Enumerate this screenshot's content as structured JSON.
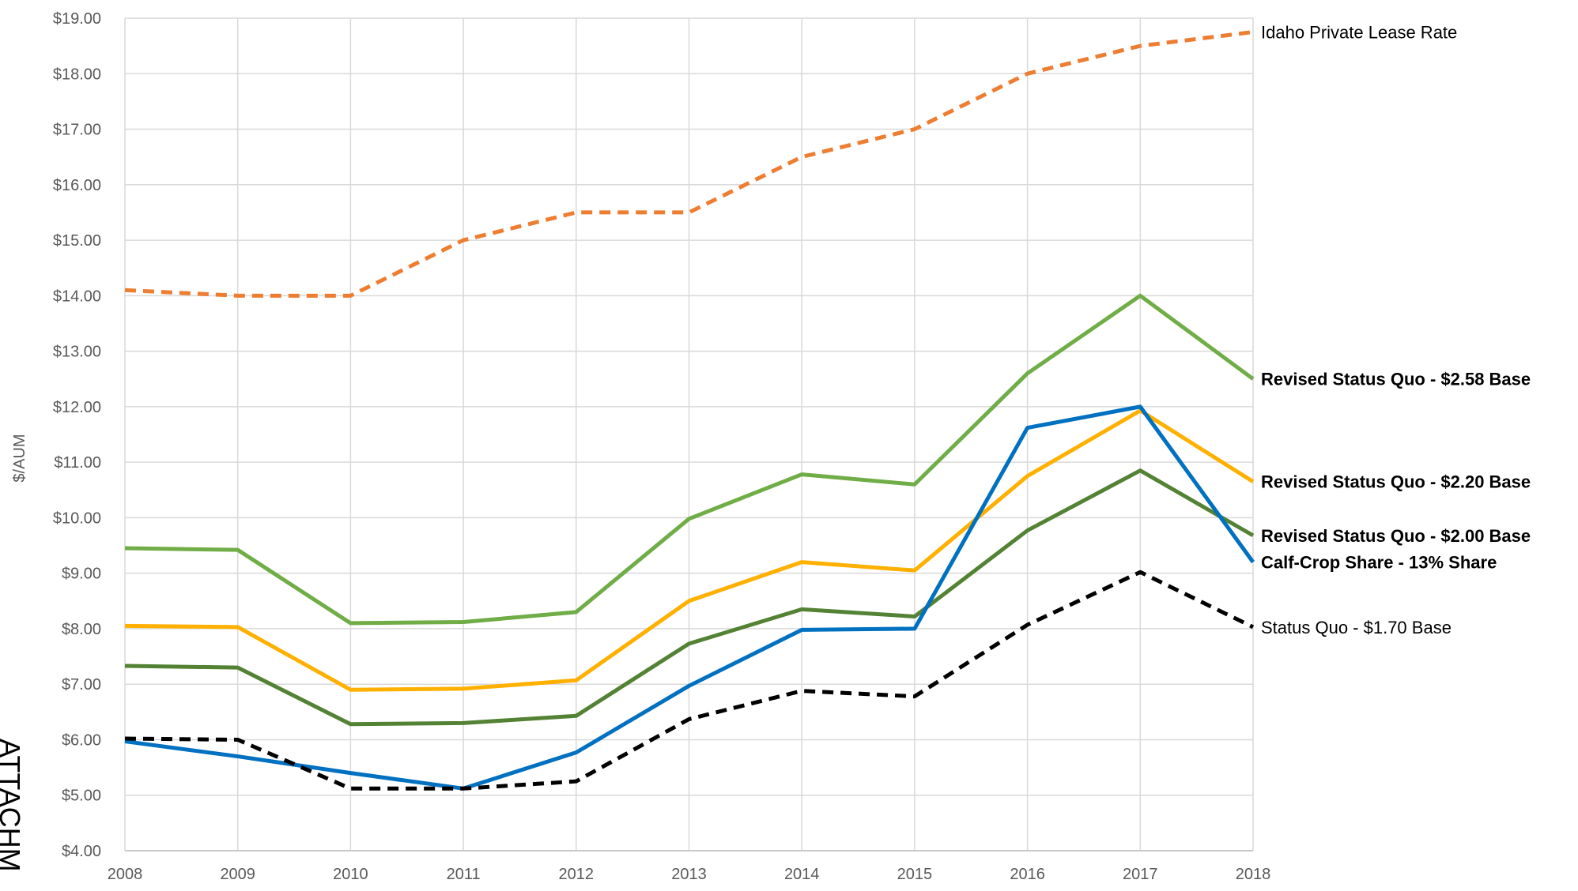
{
  "chart_data": {
    "type": "line",
    "y_label": "$/AUM",
    "annotation": "ATTACHM",
    "x": [
      "2008",
      "2009",
      "2010",
      "2011",
      "2012",
      "2013",
      "2014",
      "2015",
      "2016",
      "2017",
      "2018"
    ],
    "ylim": [
      4,
      19
    ],
    "yticks": [
      {
        "value": 4,
        "label": "$4.00"
      },
      {
        "value": 5,
        "label": "$5.00"
      },
      {
        "value": 6,
        "label": "$6.00"
      },
      {
        "value": 7,
        "label": "$7.00"
      },
      {
        "value": 8,
        "label": "$8.00"
      },
      {
        "value": 9,
        "label": "$9.00"
      },
      {
        "value": 10,
        "label": "$10.00"
      },
      {
        "value": 11,
        "label": "$11.00"
      },
      {
        "value": 12,
        "label": "$12.00"
      },
      {
        "value": 13,
        "label": "$13.00"
      },
      {
        "value": 14,
        "label": "$14.00"
      },
      {
        "value": 15,
        "label": "$15.00"
      },
      {
        "value": 16,
        "label": "$16.00"
      },
      {
        "value": 17,
        "label": "$17.00"
      },
      {
        "value": 18,
        "label": "$18.00"
      },
      {
        "value": 19,
        "label": "$19.00"
      }
    ],
    "grid": true,
    "series": [
      {
        "name": "Idaho Private Lease Rate",
        "color": "#ed7d31",
        "dashed": true,
        "label_bold": false,
        "values": [
          14.1,
          14.0,
          14.0,
          15.0,
          15.5,
          15.5,
          16.5,
          17.0,
          18.0,
          18.5,
          18.75
        ]
      },
      {
        "name": "Revised Status Quo - $2.58 Base",
        "color": "#70ad47",
        "dashed": false,
        "label_bold": true,
        "values": [
          9.45,
          9.42,
          8.1,
          8.12,
          8.3,
          9.98,
          10.78,
          10.6,
          12.6,
          14.0,
          12.5
        ]
      },
      {
        "name": "Revised Status Quo - $2.20 Base",
        "color": "#ffb000",
        "dashed": false,
        "label_bold": true,
        "values": [
          8.05,
          8.03,
          6.9,
          6.92,
          7.07,
          8.5,
          9.2,
          9.05,
          10.75,
          11.93,
          10.65
        ]
      },
      {
        "name": "Revised Status Quo - $2.00 Base",
        "color": "#548235",
        "dashed": false,
        "label_bold": true,
        "values": [
          7.33,
          7.3,
          6.28,
          6.3,
          6.43,
          7.73,
          8.35,
          8.22,
          9.77,
          10.85,
          9.68
        ]
      },
      {
        "name": "Calf-Crop Share - 13% Share",
        "color": "#0070c0",
        "dashed": false,
        "label_bold": true,
        "values": [
          5.97,
          5.7,
          5.4,
          5.12,
          5.77,
          6.97,
          7.98,
          8.0,
          11.62,
          12.0,
          9.2
        ]
      },
      {
        "name": "Status Quo - $1.70 Base",
        "color": "#000000",
        "dashed": true,
        "label_bold": false,
        "values": [
          6.02,
          6.0,
          5.12,
          5.12,
          5.25,
          6.37,
          6.88,
          6.78,
          8.07,
          9.02,
          8.03
        ]
      }
    ]
  }
}
